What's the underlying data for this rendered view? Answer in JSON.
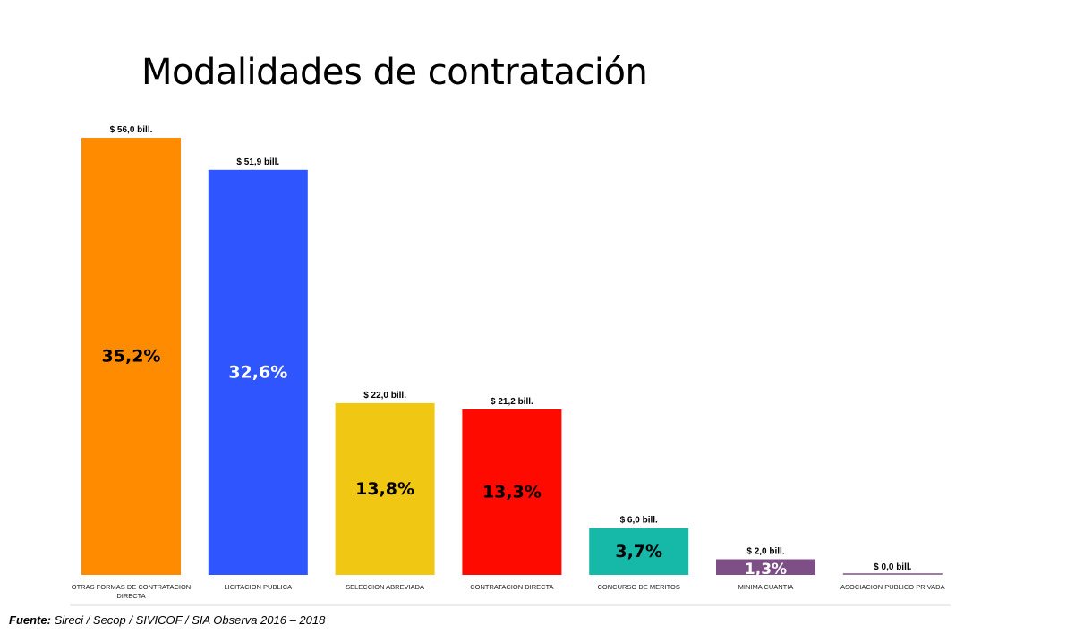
{
  "title": "Modalidades de contratación",
  "source": {
    "label": "Fuente:",
    "text": " Sireci / Secop / SIVICOF / SIA Observa 2016 – 2018"
  },
  "chart_data": {
    "type": "bar",
    "title": "Modalidades de contratación",
    "xlabel": "",
    "ylabel": "",
    "unit": "$ bill.",
    "ylim": [
      0,
      56
    ],
    "grid": false,
    "legend": "none",
    "categories": [
      [
        "OTRAS FORMAS DE CONTRATACION",
        "DIRECTA"
      ],
      [
        "LICITACION PUBLICA"
      ],
      [
        "SELECCION ABREVIADA"
      ],
      [
        "CONTRATACION DIRECTA"
      ],
      [
        "CONCURSO DE MERITOS"
      ],
      [
        "MINIMA CUANTIA"
      ],
      [
        "ASOCIACION PUBLICO PRIVADA"
      ]
    ],
    "values": [
      56.0,
      51.9,
      22.0,
      21.2,
      6.0,
      2.0,
      0.0
    ],
    "value_labels": [
      "$ 56,0 bill.",
      "$ 51,9 bill.",
      "$ 22,0 bill.",
      "$ 21,2 bill.",
      "$ 6,0 bill.",
      "$ 2,0 bill.",
      "$ 0,0 bill."
    ],
    "percent_labels": [
      "35,2%",
      "32,6%",
      "13,8%",
      "13,3%",
      "3,7%",
      "1,3%",
      ""
    ],
    "colors": [
      "#ff8c00",
      "#2f55ff",
      "#f0c813",
      "#ff0a00",
      "#16b9a8",
      "#7e4f86",
      "#7e4f86"
    ],
    "percent_label_colors": [
      "#000000",
      "#ffffff",
      "#000000",
      "#000000",
      "#000000",
      "#ffffff",
      "#000000"
    ]
  }
}
